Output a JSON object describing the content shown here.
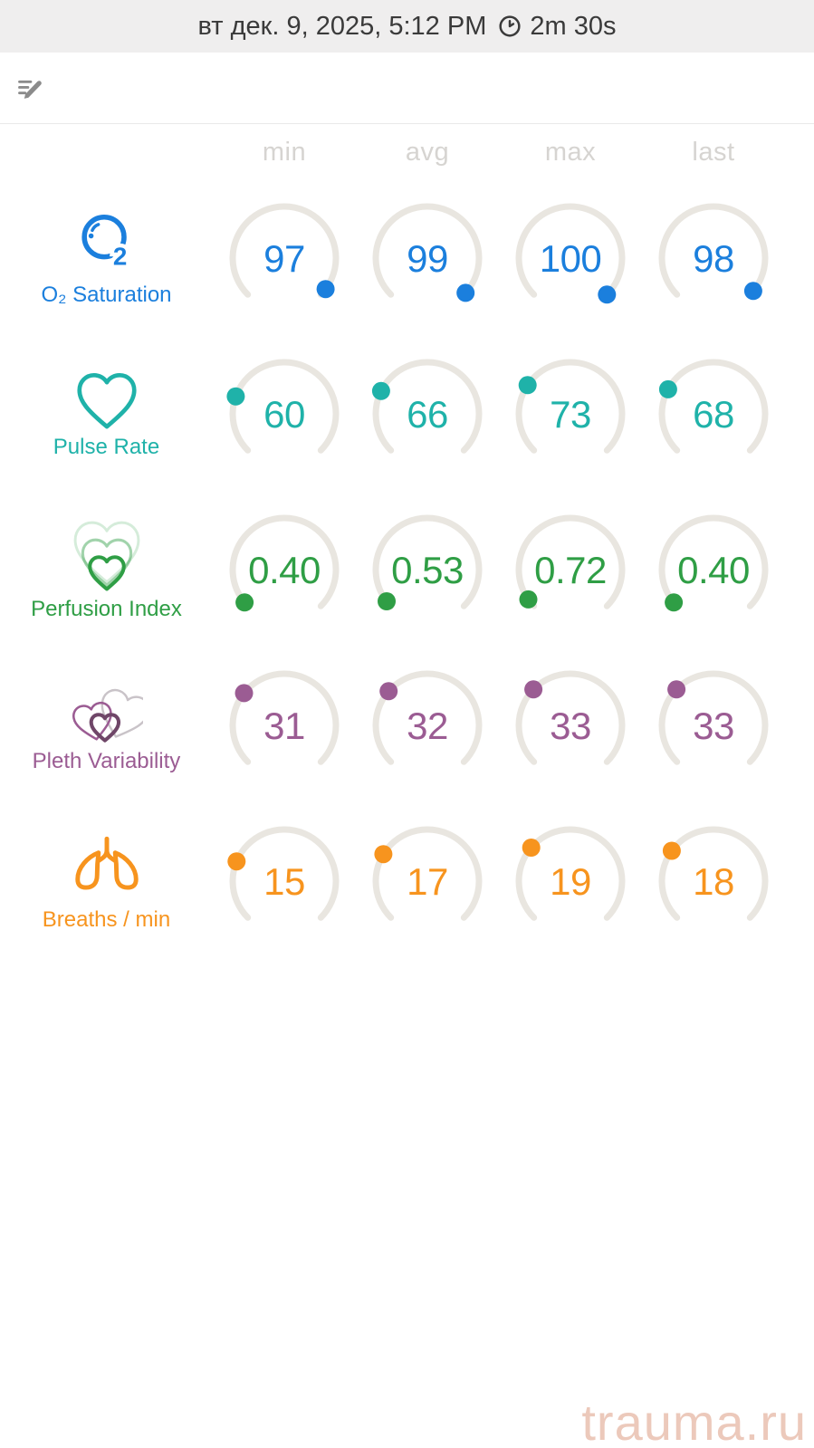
{
  "header": {
    "datetime": "вт дек. 9, 2025, 5:12 PM",
    "duration": "2m 30s",
    "duration_icon": "clock-icon"
  },
  "toolbar": {
    "edit_icon": "edit-note-icon"
  },
  "columns": [
    "min",
    "avg",
    "max",
    "last"
  ],
  "colors": {
    "track": "#e9e6e0",
    "header_bg": "#efeeee",
    "header_text": "#3a3a3a",
    "column_header_text": "#d6d4d1",
    "watermark": "#ecc9bb"
  },
  "metrics": [
    {
      "id": "o2",
      "label": "O₂ Saturation",
      "icon": "o2-bubble-icon",
      "color": "#1b7fdd",
      "range": [
        0,
        100
      ],
      "values": {
        "min": "97",
        "avg": "99",
        "max": "100",
        "last": "98"
      }
    },
    {
      "id": "pulse",
      "label": "Pulse Rate",
      "icon": "heart-icon",
      "color": "#1fb2a9",
      "range": [
        0,
        250
      ],
      "values": {
        "min": "60",
        "avg": "66",
        "max": "73",
        "last": "68"
      }
    },
    {
      "id": "perfusion",
      "label": "Perfusion Index",
      "icon": "perfusion-hearts-icon",
      "color": "#2f9e45",
      "range": [
        0,
        20
      ],
      "values": {
        "min": "0.40",
        "avg": "0.53",
        "max": "0.72",
        "last": "0.40"
      }
    },
    {
      "id": "pleth",
      "label": "Pleth Variability",
      "icon": "pleth-hearts-icon",
      "color": "#9b5c93",
      "range": [
        0,
        100
      ],
      "values": {
        "min": "31",
        "avg": "32",
        "max": "33",
        "last": "33"
      }
    },
    {
      "id": "breaths",
      "label": "Breaths / min",
      "icon": "lungs-icon",
      "color": "#f7941e",
      "range": [
        0,
        60
      ],
      "values": {
        "min": "15",
        "avg": "17",
        "max": "19",
        "last": "18"
      }
    }
  ],
  "watermark": "trauma.ru"
}
